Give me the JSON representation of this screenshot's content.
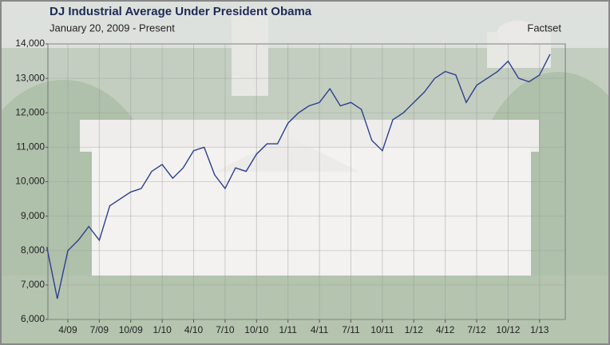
{
  "chart_data": {
    "type": "line",
    "title": "DJ Industrial Average Under President Obama",
    "subtitle": "January 20, 2009 - Present",
    "source": "Factset",
    "categories": [
      null,
      null,
      "4/09",
      null,
      null,
      "7/09",
      null,
      null,
      "10/09",
      null,
      null,
      "1/10",
      null,
      null,
      "4/10",
      null,
      null,
      "7/10",
      null,
      null,
      "10/10",
      null,
      null,
      "1/11",
      null,
      null,
      "4/11",
      null,
      null,
      "7/11",
      null,
      null,
      "10/11",
      null,
      null,
      "1/12",
      null,
      null,
      "4/12",
      null,
      null,
      "7/12",
      null,
      null,
      "10/12",
      null,
      null,
      "1/13",
      null
    ],
    "values": [
      8100,
      6600,
      8000,
      8300,
      8700,
      8300,
      9300,
      9500,
      9700,
      9800,
      10300,
      10500,
      10100,
      10400,
      10900,
      11000,
      10200,
      9800,
      10400,
      10300,
      10800,
      11100,
      11100,
      11700,
      12000,
      12200,
      12300,
      12700,
      12200,
      12300,
      12100,
      11200,
      10900,
      11800,
      12000,
      12300,
      12600,
      13000,
      13200,
      13100,
      12300,
      12800,
      13000,
      13200,
      13500,
      13000,
      12900,
      13100,
      13700
    ],
    "color": "#2b3f8f",
    "ylim": [
      6000,
      14000
    ],
    "yticks": [
      {
        "value": 6000,
        "label": "6,000"
      },
      {
        "value": 7000,
        "label": "7,000"
      },
      {
        "value": 8000,
        "label": "8,000"
      },
      {
        "value": 9000,
        "label": "9,000"
      },
      {
        "value": 10000,
        "label": "10,000"
      },
      {
        "value": 11000,
        "label": "11,000"
      },
      {
        "value": 12000,
        "label": "12,000"
      },
      {
        "value": 13000,
        "label": "13,000"
      },
      {
        "value": 14000,
        "label": "14,000"
      }
    ],
    "grid": true
  }
}
